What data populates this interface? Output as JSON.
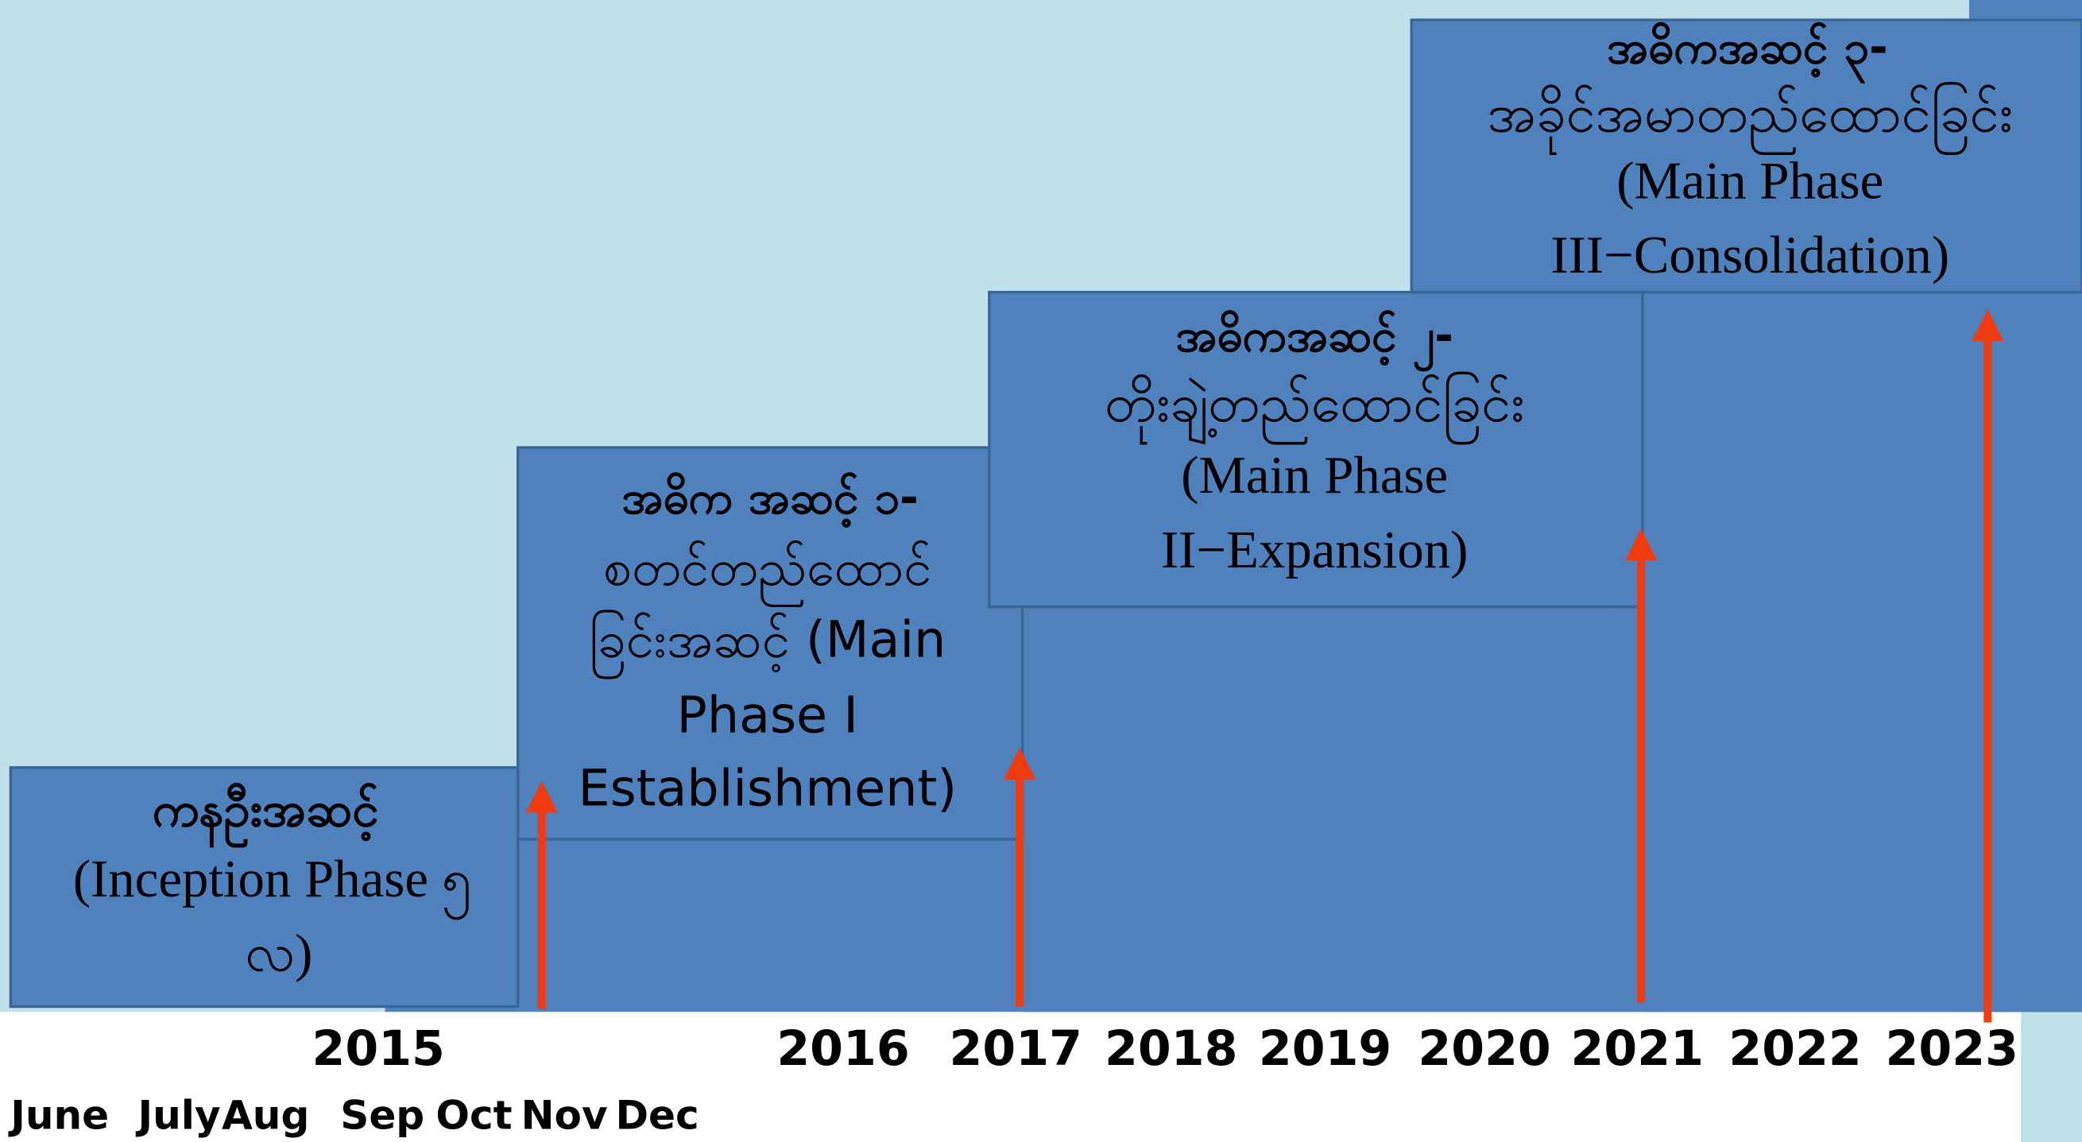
{
  "boxes": [
    {
      "title": "ကနဦးအဆင့်",
      "lines": [
        "(Inception Phase ၅",
        "လ)"
      ]
    },
    {
      "title": "အဓိက အဆင့် ၁-",
      "lines": [
        "စတင်တည်ထောင်",
        "ခြင်းအဆင့် (Main",
        "Phase I",
        "Establishment)"
      ]
    },
    {
      "title": "အဓိကအဆင့် ၂-",
      "lines": [
        "တိုးချဲ့တည်ထောင်ခြင်း",
        "(Main Phase",
        "II−Expansion)"
      ]
    },
    {
      "title": "အဓိကအဆင့် ၃-",
      "lines": [
        "အခိုင်အမာတည်ထောင်ခြင်း",
        "(Main Phase",
        "III−Consolidation)"
      ]
    }
  ],
  "years": [
    "2015",
    "2016",
    "2017",
    "2018",
    "2019",
    "2020",
    "2021",
    "2022",
    "2023"
  ],
  "months": [
    "June",
    "July",
    "Aug",
    "Sep",
    "Oct",
    "Nov",
    "Dec"
  ]
}
